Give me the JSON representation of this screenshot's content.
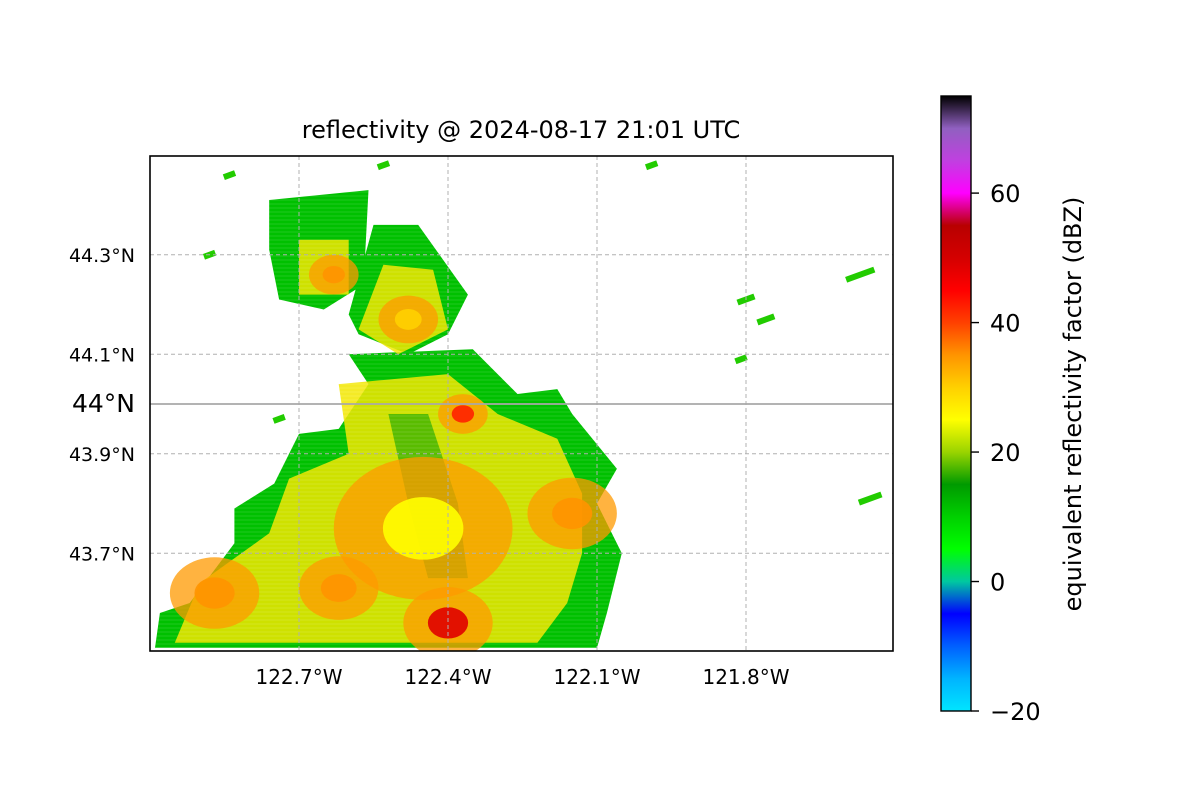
{
  "title": "reflectivity @ 2024-08-17 21:01 UTC",
  "colorbar": {
    "label": "equivalent reflectivity factor (dBZ)",
    "min": -20,
    "max": 75,
    "ticks": [
      {
        "value": -20,
        "label": "−20"
      },
      {
        "value": 0,
        "label": "0"
      },
      {
        "value": 20,
        "label": "20"
      },
      {
        "value": 40,
        "label": "40"
      },
      {
        "value": 60,
        "label": "60"
      }
    ],
    "colors": [
      "#00e5ff",
      "#00b4ff",
      "#0060ff",
      "#0000ff",
      "#00c8a0",
      "#00ff00",
      "#00d000",
      "#009a00",
      "#9ad400",
      "#ffff00",
      "#ffd000",
      "#ff9400",
      "#ff4000",
      "#ff0000",
      "#d40000",
      "#b80000",
      "#ff00ff",
      "#c040e0",
      "#9060c0",
      "#000000"
    ]
  },
  "map": {
    "lon_range": [
      -122.99,
      -121.99
    ],
    "lat_range": [
      43.52,
      44.52
    ],
    "lon_ticks": [
      {
        "value": -122.7,
        "label": "122.7°W"
      },
      {
        "value": -122.4,
        "label": "122.4°W"
      },
      {
        "value": -122.1,
        "label": "122.1°W"
      },
      {
        "value": -121.8,
        "label": "121.8°W"
      }
    ],
    "lat_ticks": [
      {
        "value": 44.3,
        "label": "44.3°N"
      },
      {
        "value": 44.1,
        "label": "44.1°N"
      },
      {
        "value": 43.9,
        "label": "43.9°N"
      },
      {
        "value": 43.7,
        "label": "43.7°N"
      }
    ],
    "highlight_lat": {
      "value": 44.0,
      "label": "44°N"
    },
    "gridlines": "dashed"
  },
  "echo_cells": [
    {
      "lon": -122.63,
      "lat": 44.26,
      "dbz": 35,
      "r": 0.05
    },
    {
      "lon": -122.48,
      "lat": 44.17,
      "dbz": 30,
      "r": 0.06
    },
    {
      "lon": -122.37,
      "lat": 43.98,
      "dbz": 40,
      "r": 0.05
    },
    {
      "lon": -122.15,
      "lat": 43.78,
      "dbz": 38,
      "r": 0.09
    },
    {
      "lon": -122.87,
      "lat": 43.62,
      "dbz": 38,
      "r": 0.09
    },
    {
      "lon": -122.62,
      "lat": 43.63,
      "dbz": 36,
      "r": 0.08
    },
    {
      "lon": -122.4,
      "lat": 43.56,
      "dbz": 48,
      "r": 0.09
    },
    {
      "lon": -122.45,
      "lat": 43.75,
      "dbz": 25,
      "r": 0.18
    }
  ]
}
